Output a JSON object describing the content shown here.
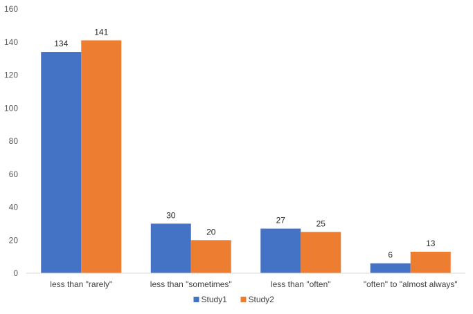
{
  "chart_data": {
    "type": "bar",
    "categories": [
      "less than \"rarely\"",
      "less than \"sometimes\"",
      "less than \"often\"",
      "\"often\" to \"almost always\""
    ],
    "series": [
      {
        "name": "Study1",
        "values": [
          134,
          30,
          27,
          6
        ],
        "color": "#4472C4"
      },
      {
        "name": "Study2",
        "values": [
          141,
          20,
          25,
          13
        ],
        "color": "#ED7D31"
      }
    ],
    "yticks": [
      0,
      20,
      40,
      60,
      80,
      100,
      120,
      140,
      160
    ],
    "ylim": [
      0,
      160
    ],
    "grid": false,
    "legend_position": "bottom",
    "data_labels": true
  }
}
